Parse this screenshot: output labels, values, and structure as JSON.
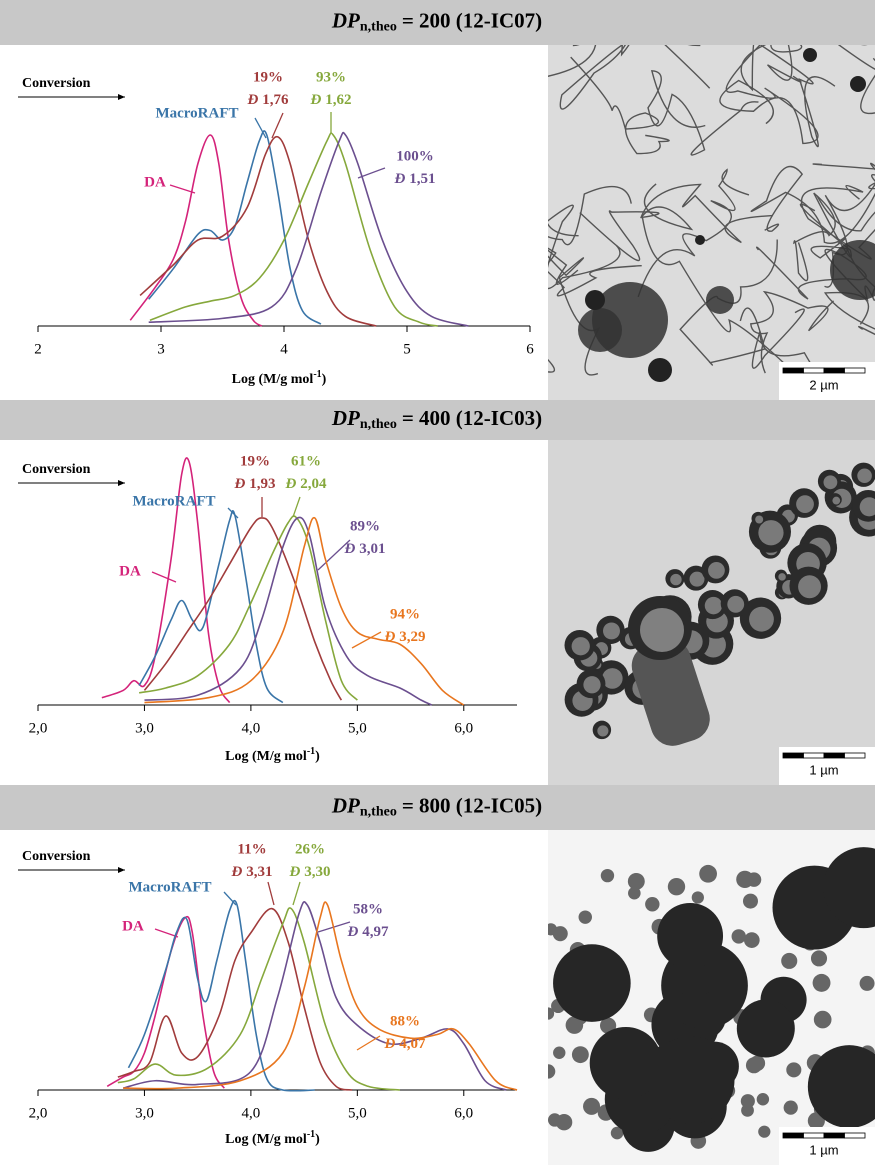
{
  "chart_data": [
    {
      "type": "line",
      "title": [
        "DP",
        "n,theo",
        "= 200 (12-IC07)"
      ],
      "annotation": "Conversion",
      "dispersity_symbol": "Đ",
      "x_label": [
        "Log (M/g mol",
        "-1",
        ")"
      ],
      "xlim": [
        2,
        6
      ],
      "xticks": [
        2,
        3,
        4,
        5,
        6
      ],
      "series": [
        {
          "name": "DA",
          "color": "#d4237a",
          "x": [
            2.75,
            2.95,
            3.1,
            3.2,
            3.3,
            3.4,
            3.47,
            3.55,
            3.65,
            3.75,
            3.82
          ],
          "values": [
            0.03,
            0.2,
            0.35,
            0.55,
            0.85,
            1.0,
            0.85,
            0.45,
            0.15,
            0.03,
            0.0
          ]
        },
        {
          "name": "MacroRAFT",
          "color": "#3a75a8",
          "x": [
            2.9,
            3.1,
            3.3,
            3.4,
            3.5,
            3.6,
            3.7,
            3.8,
            3.86,
            3.95,
            4.05,
            4.15,
            4.3
          ],
          "values": [
            0.14,
            0.3,
            0.48,
            0.5,
            0.45,
            0.52,
            0.75,
            0.97,
            1.0,
            0.7,
            0.3,
            0.08,
            0.01
          ]
        },
        {
          "name": "19%",
          "dispersity": {
            "value": 1.76,
            "label": "1,76"
          },
          "color": "#a13c3c",
          "x": [
            2.83,
            3.1,
            3.3,
            3.5,
            3.7,
            3.85,
            3.95,
            4.05,
            4.2,
            4.35,
            4.5,
            4.75
          ],
          "values": [
            0.16,
            0.32,
            0.45,
            0.47,
            0.62,
            0.9,
            0.99,
            0.85,
            0.45,
            0.18,
            0.05,
            0.0
          ]
        },
        {
          "name": "93%",
          "dispersity": {
            "value": 1.62,
            "label": "1,62"
          },
          "color": "#86a83c",
          "x": [
            2.91,
            3.2,
            3.4,
            3.6,
            3.8,
            4.0,
            4.2,
            4.35,
            4.4,
            4.5,
            4.7,
            4.9,
            5.1,
            5.25
          ],
          "values": [
            0.03,
            0.1,
            0.13,
            0.16,
            0.25,
            0.45,
            0.75,
            0.97,
            1.0,
            0.85,
            0.4,
            0.1,
            0.02,
            0.0
          ]
        },
        {
          "name": "100%",
          "dispersity": {
            "value": 1.51,
            "label": "1,51"
          },
          "color": "#6b4f8f",
          "x": [
            2.9,
            3.5,
            3.9,
            4.1,
            4.3,
            4.45,
            4.5,
            4.6,
            4.8,
            5.0,
            5.2,
            5.5
          ],
          "values": [
            0.02,
            0.04,
            0.1,
            0.3,
            0.7,
            0.97,
            1.0,
            0.85,
            0.45,
            0.18,
            0.05,
            0.0
          ]
        }
      ],
      "image": {
        "scale_bar": "2 µm"
      }
    },
    {
      "type": "line",
      "title": [
        "DP",
        "n,theo",
        "= 400 (12-IC03)"
      ],
      "annotation": "Conversion",
      "dispersity_symbol": "Đ",
      "x_label": [
        "Log (M/g mol",
        "-1",
        ")"
      ],
      "xlim": [
        2,
        6.5
      ],
      "xticks": [
        {
          "value": 2,
          "label": "2,0"
        },
        {
          "value": 3,
          "label": "3,0"
        },
        {
          "value": 4,
          "label": "4,0"
        },
        {
          "value": 5,
          "label": "5,0"
        },
        {
          "value": 6,
          "label": "6,0"
        }
      ],
      "series": [
        {
          "name": "DA",
          "color": "#d4237a",
          "x": [
            2.6,
            2.8,
            2.9,
            3.0,
            3.1,
            3.25,
            3.35,
            3.42,
            3.5,
            3.6,
            3.7,
            3.8
          ],
          "values": [
            0.03,
            0.06,
            0.1,
            0.08,
            0.2,
            0.6,
            0.95,
            1.0,
            0.75,
            0.3,
            0.08,
            0.01
          ]
        },
        {
          "name": "MacroRAFT",
          "color": "#3a75a8",
          "x": [
            2.95,
            3.1,
            3.25,
            3.35,
            3.45,
            3.55,
            3.7,
            3.8,
            3.85,
            3.95,
            4.05,
            4.15,
            4.3
          ],
          "values": [
            0.08,
            0.2,
            0.35,
            0.43,
            0.35,
            0.32,
            0.58,
            0.76,
            0.78,
            0.53,
            0.25,
            0.07,
            0.01
          ]
        },
        {
          "name": "19%",
          "dispersity": {
            "value": 1.93,
            "label": "1,93"
          },
          "color": "#a13c3c",
          "x": [
            3.0,
            3.2,
            3.4,
            3.6,
            3.8,
            4.0,
            4.1,
            4.2,
            4.4,
            4.6,
            4.75,
            4.85
          ],
          "values": [
            0.06,
            0.17,
            0.3,
            0.43,
            0.58,
            0.73,
            0.77,
            0.73,
            0.52,
            0.26,
            0.1,
            0.02
          ]
        },
        {
          "name": "61%",
          "dispersity": {
            "value": 2.04,
            "label": "2,04"
          },
          "color": "#86a83c",
          "x": [
            2.95,
            3.2,
            3.5,
            3.8,
            4.0,
            4.2,
            4.35,
            4.43,
            4.55,
            4.7,
            4.85,
            5.0
          ],
          "values": [
            0.05,
            0.07,
            0.12,
            0.25,
            0.42,
            0.62,
            0.75,
            0.77,
            0.65,
            0.35,
            0.1,
            0.02
          ]
        },
        {
          "name": "89%",
          "dispersity": {
            "value": 3.01,
            "label": "3,01"
          },
          "color": "#6b4f8f",
          "x": [
            3.0,
            3.5,
            3.9,
            4.1,
            4.3,
            4.44,
            4.55,
            4.7,
            4.9,
            5.1,
            5.4,
            5.6,
            5.7
          ],
          "values": [
            0.02,
            0.04,
            0.15,
            0.35,
            0.65,
            0.77,
            0.7,
            0.4,
            0.2,
            0.12,
            0.07,
            0.02,
            0.0
          ]
        },
        {
          "name": "94%",
          "dispersity": {
            "value": 3.29,
            "label": "3,29"
          },
          "color": "#e8761f",
          "x": [
            3.0,
            3.6,
            4.0,
            4.3,
            4.5,
            4.6,
            4.7,
            4.85,
            5.0,
            5.2,
            5.4,
            5.6,
            5.8,
            6.0
          ],
          "values": [
            0.01,
            0.03,
            0.1,
            0.3,
            0.65,
            0.77,
            0.6,
            0.4,
            0.3,
            0.27,
            0.25,
            0.17,
            0.06,
            0.0
          ]
        }
      ],
      "image": {
        "scale_bar": "1 µm"
      }
    },
    {
      "type": "line",
      "title": [
        "DP",
        "n,theo",
        "= 800 (12-IC05)"
      ],
      "annotation": "Conversion",
      "dispersity_symbol": "Đ",
      "x_label": [
        "Log (M/g mol",
        "-1",
        ")"
      ],
      "xlim": [
        2,
        6.5
      ],
      "xticks": [
        {
          "value": 2,
          "label": "2,0"
        },
        {
          "value": 3,
          "label": "3,0"
        },
        {
          "value": 4,
          "label": "4,0"
        },
        {
          "value": 5,
          "label": "5,0"
        },
        {
          "value": 6,
          "label": "6,0"
        }
      ],
      "series": [
        {
          "name": "DA",
          "color": "#d4237a",
          "x": [
            2.65,
            2.8,
            2.9,
            3.0,
            3.1,
            3.25,
            3.38,
            3.45,
            3.55,
            3.65,
            3.75
          ],
          "values": [
            0.02,
            0.07,
            0.1,
            0.2,
            0.4,
            0.75,
            0.93,
            0.85,
            0.4,
            0.1,
            0.01
          ]
        },
        {
          "name": "MacroRAFT",
          "color": "#3a75a8",
          "x": [
            2.85,
            3.0,
            3.2,
            3.3,
            3.4,
            3.5,
            3.58,
            3.68,
            3.8,
            3.87,
            3.95,
            4.05,
            4.15,
            4.3,
            4.6
          ],
          "values": [
            0.12,
            0.3,
            0.65,
            0.85,
            0.92,
            0.6,
            0.48,
            0.7,
            0.97,
            1.0,
            0.7,
            0.3,
            0.06,
            0.0,
            0.0
          ]
        },
        {
          "name": "11%",
          "dispersity": {
            "value": 3.31,
            "label": "3,31"
          },
          "color": "#a13c3c",
          "x": [
            2.75,
            2.9,
            3.05,
            3.2,
            3.35,
            3.5,
            3.7,
            3.85,
            4.0,
            4.2,
            4.35,
            4.5,
            4.65,
            4.8,
            4.95
          ],
          "values": [
            0.07,
            0.1,
            0.15,
            0.4,
            0.2,
            0.18,
            0.4,
            0.7,
            0.85,
            0.98,
            0.8,
            0.45,
            0.15,
            0.02,
            0.0
          ]
        },
        {
          "name": "26%",
          "dispersity": {
            "value": 3.3,
            "label": "3,30"
          },
          "color": "#86a83c",
          "x": [
            2.75,
            2.9,
            3.1,
            3.3,
            3.6,
            3.9,
            4.1,
            4.3,
            4.38,
            4.5,
            4.7,
            4.9,
            5.1,
            5.4
          ],
          "values": [
            0.04,
            0.06,
            0.14,
            0.08,
            0.12,
            0.3,
            0.6,
            0.9,
            0.98,
            0.8,
            0.35,
            0.1,
            0.02,
            0.0
          ]
        },
        {
          "name": "58%",
          "dispersity": {
            "value": 4.97,
            "label": "4,97"
          },
          "color": "#6b4f8f",
          "x": [
            2.8,
            3.1,
            3.5,
            4.0,
            4.25,
            4.45,
            4.53,
            4.65,
            4.8,
            5.0,
            5.3,
            5.6,
            5.85,
            6.0,
            6.2,
            6.4
          ],
          "values": [
            0.01,
            0.05,
            0.03,
            0.1,
            0.5,
            0.95,
            1.0,
            0.8,
            0.5,
            0.35,
            0.25,
            0.28,
            0.33,
            0.25,
            0.05,
            0.0
          ]
        },
        {
          "name": "88%",
          "dispersity": {
            "value": 4.07,
            "label": "4,07"
          },
          "color": "#e8761f",
          "x": [
            2.8,
            3.3,
            3.9,
            4.3,
            4.5,
            4.65,
            4.72,
            4.85,
            5.0,
            5.2,
            5.5,
            5.75,
            5.9,
            6.05,
            6.3,
            6.5
          ],
          "values": [
            0.01,
            0.01,
            0.05,
            0.2,
            0.55,
            0.93,
            1.0,
            0.7,
            0.45,
            0.33,
            0.28,
            0.3,
            0.33,
            0.25,
            0.05,
            0.0
          ]
        }
      ],
      "image": {
        "scale_bar": "1 µm"
      }
    }
  ]
}
